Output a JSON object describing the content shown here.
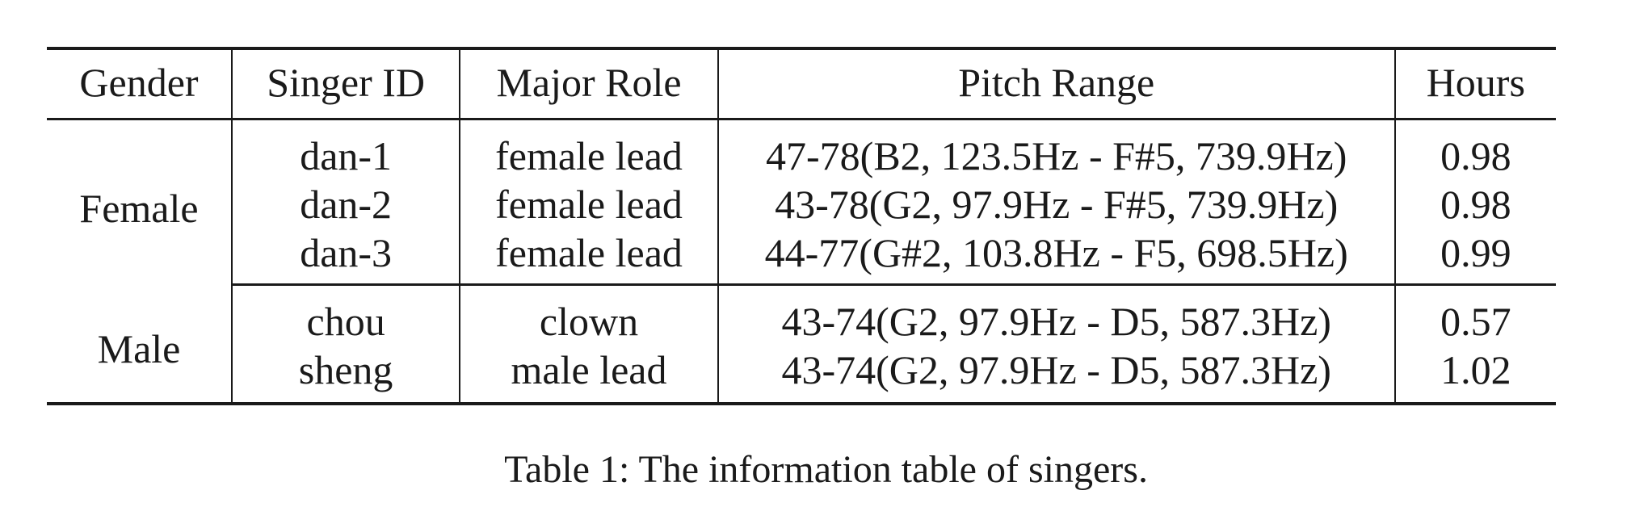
{
  "table": {
    "headers": [
      "Gender",
      "Singer ID",
      "Major Role",
      "Pitch Range",
      "Hours"
    ],
    "groups": [
      {
        "gender": "Female",
        "rows": [
          {
            "singer_id": "dan-1",
            "role": "female lead",
            "pitch": "47-78(B2, 123.5Hz - F#5, 739.9Hz)",
            "hours": "0.98"
          },
          {
            "singer_id": "dan-2",
            "role": "female lead",
            "pitch": "43-78(G2, 97.9Hz - F#5, 739.9Hz)",
            "hours": "0.98"
          },
          {
            "singer_id": "dan-3",
            "role": "female lead",
            "pitch": "44-77(G#2, 103.8Hz - F5, 698.5Hz)",
            "hours": "0.99"
          }
        ]
      },
      {
        "gender": "Male",
        "rows": [
          {
            "singer_id": "chou",
            "role": "clown",
            "pitch": "43-74(G2, 97.9Hz - D5, 587.3Hz)",
            "hours": "0.57"
          },
          {
            "singer_id": "sheng",
            "role": "male lead",
            "pitch": "43-74(G2, 97.9Hz - D5, 587.3Hz)",
            "hours": "1.02"
          }
        ]
      }
    ]
  },
  "caption": "Table 1: The information table of singers."
}
